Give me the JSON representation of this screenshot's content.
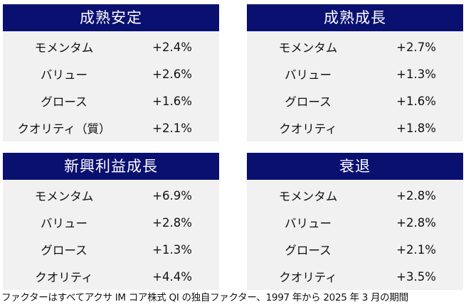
{
  "panels": [
    {
      "title": "成熟安定",
      "rows": [
        {
          "factor": "モメンタム",
          "value": "+2.4%"
        },
        {
          "factor": "バリュー",
          "value": "+2.6%"
        },
        {
          "factor": "グロース",
          "value": "+1.6%"
        },
        {
          "factor": "クオリティ（質）",
          "value": "+2.1%"
        }
      ]
    },
    {
      "title": "成熟成長",
      "rows": [
        {
          "factor": "モメンタム",
          "value": "+2.7%"
        },
        {
          "factor": "バリュー",
          "value": "+1.3%"
        },
        {
          "factor": "グロース",
          "value": "+1.6%"
        },
        {
          "factor": "クオリティ",
          "value": "+1.8%"
        }
      ]
    },
    {
      "title": "新興利益成長",
      "rows": [
        {
          "factor": "モメンタム",
          "value": "+6.9%"
        },
        {
          "factor": "バリュー",
          "value": "+2.8%"
        },
        {
          "factor": "グロース",
          "value": "+1.3%"
        },
        {
          "factor": "クオリティ",
          "value": "+4.4%"
        }
      ]
    },
    {
      "title": "衰退",
      "rows": [
        {
          "factor": "モメンタム",
          "value": "+2.8%"
        },
        {
          "factor": "バリュー",
          "value": "+2.8%"
        },
        {
          "factor": "グロース",
          "value": "+2.1%"
        },
        {
          "factor": "クオリティ",
          "value": "+3.5%"
        }
      ]
    }
  ],
  "footnote": "ファクターはすべてアクサ IM コア株式 QI の独自ファクター、1997 年から 2025 年 3 月の期間",
  "colors": {
    "header_bg": "#0a1070",
    "body_bg": "#f1f1f1"
  }
}
